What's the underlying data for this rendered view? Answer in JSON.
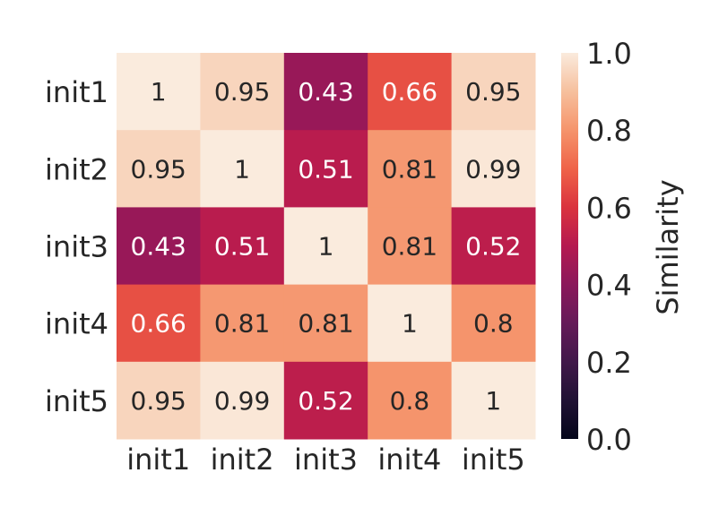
{
  "chart_data": {
    "type": "heatmap",
    "title": "",
    "xlabel": "",
    "ylabel": "",
    "x_labels": [
      "init1",
      "init2",
      "init3",
      "init4",
      "init5"
    ],
    "y_labels": [
      "init1",
      "init2",
      "init3",
      "init4",
      "init5"
    ],
    "values": [
      [
        1,
        0.95,
        0.43,
        0.66,
        0.95
      ],
      [
        0.95,
        1,
        0.51,
        0.81,
        0.99
      ],
      [
        0.43,
        0.51,
        1,
        0.81,
        0.52
      ],
      [
        0.66,
        0.81,
        0.81,
        1,
        0.8
      ],
      [
        0.95,
        0.99,
        0.52,
        0.8,
        1
      ]
    ],
    "cell_labels": [
      [
        "1",
        "0.95",
        "0.43",
        "0.66",
        "0.95"
      ],
      [
        "0.95",
        "1",
        "0.51",
        "0.81",
        "0.99"
      ],
      [
        "0.43",
        "0.51",
        "1",
        "0.81",
        "0.52"
      ],
      [
        "0.66",
        "0.81",
        "0.81",
        "1",
        "0.8"
      ],
      [
        "0.95",
        "0.99",
        "0.52",
        "0.8",
        "1"
      ]
    ],
    "colorbar": {
      "label": "Similarity",
      "range": [
        0,
        1
      ],
      "ticks": [
        "0.0",
        "0.2",
        "0.4",
        "0.6",
        "0.8",
        "1.0"
      ],
      "colormap": "rocket"
    }
  }
}
